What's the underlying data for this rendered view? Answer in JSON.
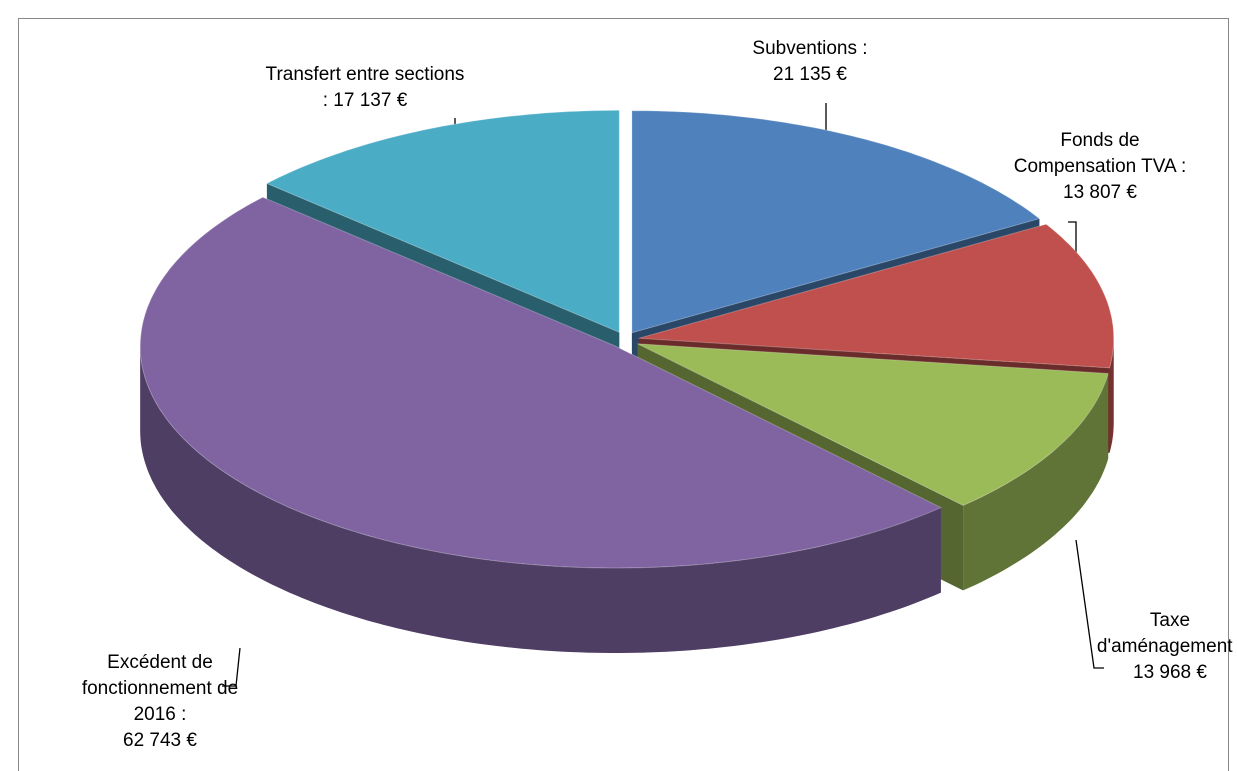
{
  "chart_data": {
    "type": "pie3d",
    "categories": [
      "Subventions :",
      "Fonds de Compensation TVA :",
      "Taxe d'aménagement :",
      "Excédent de fonctionnement de 2016 :",
      "Transfert entre sections :"
    ],
    "values": [
      21135,
      13807,
      13968,
      62743,
      17137
    ],
    "value_labels": [
      "21 135 €",
      "13 807 €",
      "13 968 €",
      "62 743 €",
      "17 137 €"
    ],
    "colors": [
      "#4f81bd",
      "#c0504d",
      "#9bbb59",
      "#8064a2",
      "#4bacc6"
    ]
  }
}
